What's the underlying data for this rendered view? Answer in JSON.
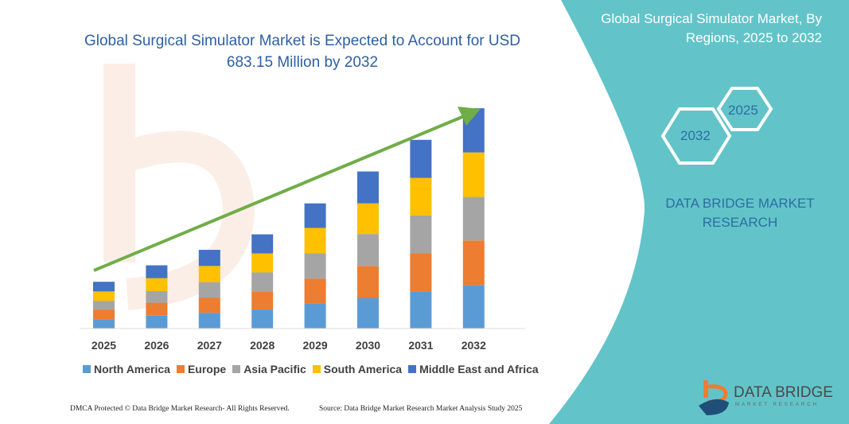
{
  "title": "Global Surgical Simulator Market is Expected to Account for USD 683.15 Million by 2032",
  "side_panel": {
    "title": "Global Surgical Simulator Market, By Regions, 2025 to 2032",
    "hex_end": "2032",
    "hex_start": "2025",
    "brand": "DATA BRIDGE MARKET RESEARCH",
    "logo_text": "DATA BRIDGE",
    "logo_subtext": "MARKET RESEARCH",
    "color": "#62c4c9"
  },
  "footer": {
    "left": "DMCA Protected © Data Bridge Market Research- All Rights Reserved.",
    "right": "Source: Data Bridge Market Research Market Analysis Study 2025"
  },
  "chart_data": {
    "type": "bar",
    "stacked": true,
    "categories": [
      "2025",
      "2026",
      "2027",
      "2028",
      "2029",
      "2030",
      "2031",
      "2032"
    ],
    "series": [
      {
        "name": "North America",
        "color": "#5b9bd5",
        "values": [
          29,
          40,
          49,
          59,
          78,
          95,
          115,
          135
        ]
      },
      {
        "name": "Europe",
        "color": "#ed7d31",
        "values": [
          30,
          40,
          47,
          56,
          77,
          99,
          118,
          138
        ]
      },
      {
        "name": "Asia Pacific",
        "color": "#a5a5a5",
        "values": [
          27,
          36,
          48,
          59,
          78,
          99,
          118,
          135
        ]
      },
      {
        "name": "South America",
        "color": "#ffc000",
        "values": [
          29,
          40,
          50,
          59,
          79,
          95,
          116,
          138
        ]
      },
      {
        "name": "Middle East and Africa",
        "color": "#4472c4",
        "values": [
          30,
          40,
          50,
          59,
          76,
          99,
          118,
          137
        ]
      }
    ],
    "ylim": [
      0,
      683.15
    ],
    "grid": false,
    "legend_position": "bottom",
    "trend_arrow_color": "#70ad47"
  }
}
